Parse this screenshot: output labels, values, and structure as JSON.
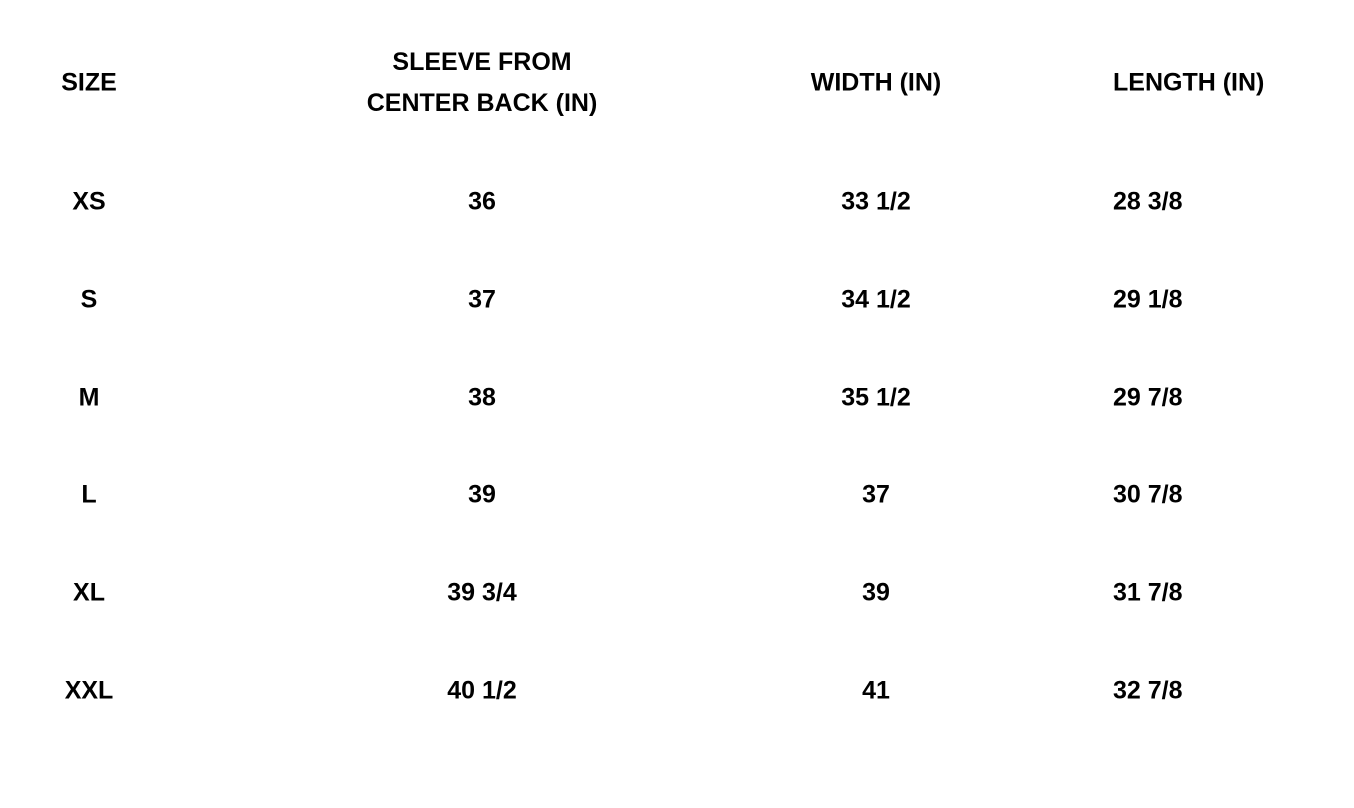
{
  "headers": {
    "size": "SIZE",
    "sleeve_line1": "SLEEVE FROM",
    "sleeve_line2": "CENTER BACK (IN)",
    "width": "WIDTH (IN)",
    "length": "LENGTH (IN)"
  },
  "rows": [
    {
      "size": "XS",
      "sleeve": "36",
      "width": "33 1/2",
      "length": "28 3/8"
    },
    {
      "size": "S",
      "sleeve": "37",
      "width": "34 1/2",
      "length": "29 1/8"
    },
    {
      "size": "M",
      "sleeve": "38",
      "width": "35 1/2",
      "length": "29 7/8"
    },
    {
      "size": "L",
      "sleeve": "39",
      "width": "37",
      "length": "30 7/8"
    },
    {
      "size": "XL",
      "sleeve": "39 3/4",
      "width": "39",
      "length": "31 7/8"
    },
    {
      "size": "XXL",
      "sleeve": "40 1/2",
      "width": "41",
      "length": "32 7/8"
    }
  ]
}
